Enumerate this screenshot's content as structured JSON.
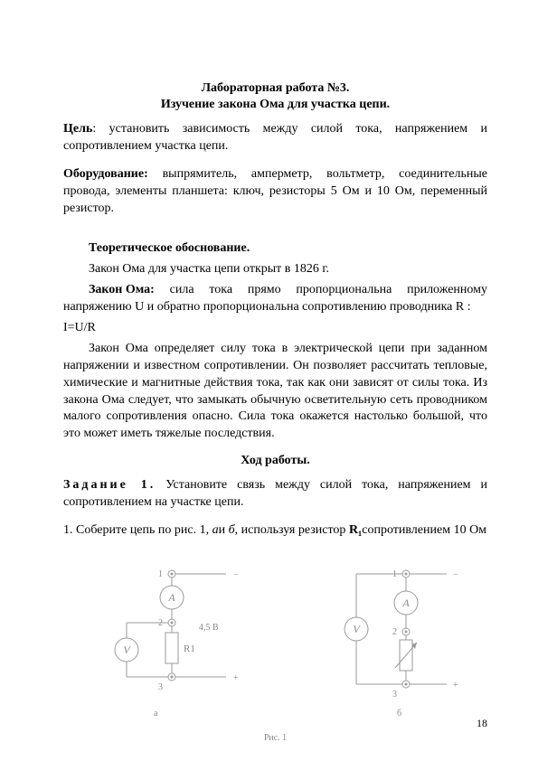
{
  "title": "Лабораторная работа №3.",
  "subtitle": "Изучение закона Ома для участка цепи.",
  "goal_label": "Цель",
  "goal_text": ": установить зависимость между силой тока, напряжением и сопротивлением участка цепи.",
  "equipment_label": "Оборудование:",
  "equipment_text": " выпрямитель, амперметр, вольтметр, соединительные провода, элементы планшета: ключ, резисторы 5 Ом и 10 Ом, переменный резистор.",
  "theory_heading": "Теоретическое обоснование.",
  "theory_line1": "Закон Ома для участка цепи открыт в 1826 г.",
  "ohm_label": "Закон Ома:",
  "ohm_text": " сила тока прямо пропорциональна приложенному напряжению U и обратно пропорциональна сопротивлению проводника R :",
  "ohm_formula": "I=U/R",
  "theory_para": "Закон Ома определяет силу тока в электрической цепи при заданном напряжении и известном сопротивлении. Он позволяет рассчитать тепловые, химические и магнитные действия тока, так как они зависят от силы тока. Из закона Ома следует, что замыкать обычную осветительную сеть проводником малого сопротивления опасно. Сила тока окажется настолько большой, что это может иметь тяжелые последствия.",
  "procedure_heading": "Ход работы.",
  "task_label": "Задание 1.",
  "task_text": " Установите связь между силой тока, напряжением и сопротивлением на участке цепи.",
  "step1_pre": "1. Соберите цепь по рис. 1, ",
  "step1_ital": "а",
  "step1_mid": "и ",
  "step1_ital2": "б",
  "step1_post": ", используя резистор ",
  "step1_r": "R₁",
  "step1_tail": "сопротивлением 10 Ом",
  "diagram": {
    "left": {
      "node1": "1",
      "node2": "2",
      "node3": "3",
      "ammeter": "A",
      "voltmeter": "V",
      "resistor": "R1",
      "voltage": "4,5 В",
      "sub": "а",
      "minus": "−",
      "plus": "+"
    },
    "right": {
      "node1": "1",
      "node2": "2",
      "node3": "3",
      "ammeter": "A",
      "voltmeter": "V",
      "sub": "б",
      "minus": "−",
      "plus": "+"
    },
    "caption": "Рис. 1",
    "style": {
      "stroke": "#9a9a9a",
      "stroke_width": 1,
      "text_color": "#888888",
      "font_size": 11,
      "node_font_size": 10,
      "terminal_radius_outer": 4,
      "terminal_radius_inner": 1.5,
      "meter_radius": 13,
      "resistor_w": 14,
      "resistor_h": 34
    }
  },
  "page_number": "18"
}
